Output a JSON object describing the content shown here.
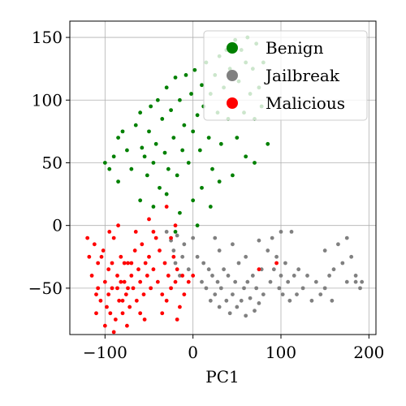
{
  "chart_data": {
    "type": "scatter",
    "xlabel": "PC1",
    "ylabel": "",
    "xlim": [
      -140,
      208
    ],
    "ylim": [
      -87,
      163
    ],
    "xticks": [
      -100,
      0,
      100,
      200
    ],
    "yticks": [
      -50,
      0,
      50,
      100,
      150
    ],
    "xtick_labels": [
      "−100",
      "0",
      "100",
      "200"
    ],
    "ytick_labels": [
      "−50",
      "0",
      "50",
      "100",
      "150"
    ],
    "grid": true,
    "legend_position": "top-right",
    "series": [
      {
        "name": "Benign",
        "color": "#008000",
        "points": [
          [
            -85,
            70
          ],
          [
            -80,
            75
          ],
          [
            -75,
            60
          ],
          [
            -70,
            45
          ],
          [
            -65,
            80
          ],
          [
            -60,
            90
          ],
          [
            -58,
            62
          ],
          [
            -55,
            55
          ],
          [
            -52,
            40
          ],
          [
            -50,
            75
          ],
          [
            -48,
            95
          ],
          [
            -45,
            50
          ],
          [
            -42,
            65
          ],
          [
            -40,
            100
          ],
          [
            -38,
            30
          ],
          [
            -35,
            85
          ],
          [
            -32,
            58
          ],
          [
            -30,
            110
          ],
          [
            -28,
            45
          ],
          [
            -25,
            92
          ],
          [
            -22,
            70
          ],
          [
            -20,
            118
          ],
          [
            -18,
            40
          ],
          [
            -15,
            100
          ],
          [
            -12,
            60
          ],
          [
            -10,
            80
          ],
          [
            -8,
            120
          ],
          [
            -5,
            50
          ],
          [
            -2,
            105
          ],
          [
            0,
            75
          ],
          [
            2,
            124
          ],
          [
            5,
            88
          ],
          [
            8,
            60
          ],
          [
            10,
            112
          ],
          [
            12,
            95
          ],
          [
            15,
            130
          ],
          [
            18,
            70
          ],
          [
            20,
            105
          ],
          [
            22,
            45
          ],
          [
            25,
            120
          ],
          [
            28,
            90
          ],
          [
            30,
            135
          ],
          [
            32,
            65
          ],
          [
            35,
            110
          ],
          [
            38,
            140
          ],
          [
            40,
            85
          ],
          [
            42,
            125
          ],
          [
            45,
            100
          ],
          [
            48,
            148
          ],
          [
            50,
            70
          ],
          [
            52,
            115
          ],
          [
            55,
            140
          ],
          [
            58,
            90
          ],
          [
            60,
            130
          ],
          [
            62,
            150
          ],
          [
            65,
            105
          ],
          [
            68,
            125
          ],
          [
            70,
            85
          ],
          [
            72,
            145
          ],
          [
            75,
            110
          ],
          [
            78,
            95
          ],
          [
            80,
            130
          ],
          [
            -90,
            55
          ],
          [
            -95,
            45
          ],
          [
            -100,
            50
          ],
          [
            -85,
            35
          ],
          [
            -60,
            20
          ],
          [
            -45,
            15
          ],
          [
            -30,
            25
          ],
          [
            -15,
            10
          ],
          [
            0,
            20
          ],
          [
            10,
            30
          ],
          [
            20,
            15
          ],
          [
            30,
            35
          ],
          [
            45,
            40
          ],
          [
            60,
            55
          ],
          [
            70,
            50
          ],
          [
            85,
            65
          ],
          [
            -20,
            -5
          ],
          [
            5,
            0
          ]
        ]
      },
      {
        "name": "Jailbreak",
        "color": "#808080",
        "points": [
          [
            -30,
            -5
          ],
          [
            -25,
            -12
          ],
          [
            -22,
            -20
          ],
          [
            -20,
            -30
          ],
          [
            -18,
            -8
          ],
          [
            -15,
            -40
          ],
          [
            -12,
            -25
          ],
          [
            -10,
            -15
          ],
          [
            -5,
            -35
          ],
          [
            0,
            -10
          ],
          [
            5,
            -25
          ],
          [
            10,
            -45
          ],
          [
            12,
            -30
          ],
          [
            15,
            -50
          ],
          [
            18,
            -35
          ],
          [
            20,
            -60
          ],
          [
            22,
            -40
          ],
          [
            25,
            -55
          ],
          [
            28,
            -45
          ],
          [
            30,
            -65
          ],
          [
            32,
            -50
          ],
          [
            35,
            -35
          ],
          [
            38,
            -60
          ],
          [
            40,
            -40
          ],
          [
            42,
            -70
          ],
          [
            45,
            -55
          ],
          [
            48,
            -45
          ],
          [
            50,
            -65
          ],
          [
            52,
            -30
          ],
          [
            55,
            -60
          ],
          [
            58,
            -50
          ],
          [
            60,
            -72
          ],
          [
            62,
            -45
          ],
          [
            65,
            -58
          ],
          [
            68,
            -40
          ],
          [
            70,
            -68
          ],
          [
            72,
            -50
          ],
          [
            75,
            -62
          ],
          [
            78,
            -35
          ],
          [
            80,
            -55
          ],
          [
            85,
            -20
          ],
          [
            88,
            -45
          ],
          [
            90,
            -10
          ],
          [
            92,
            -35
          ],
          [
            95,
            -25
          ],
          [
            98,
            -50
          ],
          [
            100,
            -40
          ],
          [
            102,
            -55
          ],
          [
            105,
            -30
          ],
          [
            108,
            -45
          ],
          [
            110,
            -60
          ],
          [
            112,
            -5
          ],
          [
            115,
            -40
          ],
          [
            118,
            -55
          ],
          [
            120,
            -35
          ],
          [
            125,
            -50
          ],
          [
            130,
            -40
          ],
          [
            135,
            -60
          ],
          [
            140,
            -45
          ],
          [
            145,
            -55
          ],
          [
            150,
            -50
          ],
          [
            155,
            -40
          ],
          [
            158,
            -60
          ],
          [
            160,
            -35
          ],
          [
            165,
            -15
          ],
          [
            170,
            -30
          ],
          [
            175,
            -45
          ],
          [
            180,
            -25
          ],
          [
            185,
            -45
          ],
          [
            190,
            -50
          ],
          [
            25,
            -10
          ],
          [
            30,
            -20
          ],
          [
            45,
            -15
          ],
          [
            60,
            -25
          ],
          [
            75,
            -12
          ],
          [
            100,
            -5
          ],
          [
            150,
            -20
          ],
          [
            175,
            -10
          ],
          [
            185,
            -40
          ],
          [
            192,
            -45
          ]
        ]
      },
      {
        "name": "Malicious",
        "color": "#ff0000",
        "points": [
          [
            -120,
            -10
          ],
          [
            -118,
            -25
          ],
          [
            -115,
            -40
          ],
          [
            -112,
            -15
          ],
          [
            -110,
            -55
          ],
          [
            -108,
            -30
          ],
          [
            -105,
            -60
          ],
          [
            -102,
            -20
          ],
          [
            -100,
            -45
          ],
          [
            -98,
            -65
          ],
          [
            -96,
            -35
          ],
          [
            -94,
            -70
          ],
          [
            -92,
            -50
          ],
          [
            -90,
            -10
          ],
          [
            -88,
            -75
          ],
          [
            -86,
            -40
          ],
          [
            -84,
            -60
          ],
          [
            -82,
            -25
          ],
          [
            -80,
            -70
          ],
          [
            -78,
            -45
          ],
          [
            -76,
            -55
          ],
          [
            -74,
            -30
          ],
          [
            -72,
            -65
          ],
          [
            -70,
            -40
          ],
          [
            -68,
            -50
          ],
          [
            -66,
            -20
          ],
          [
            -64,
            -60
          ],
          [
            -62,
            -35
          ],
          [
            -60,
            -45
          ],
          [
            -58,
            -15
          ],
          [
            -56,
            -55
          ],
          [
            -54,
            -30
          ],
          [
            -52,
            -40
          ],
          [
            -50,
            -25
          ],
          [
            -48,
            -50
          ],
          [
            -45,
            -35
          ],
          [
            -42,
            -10
          ],
          [
            -40,
            -45
          ],
          [
            -38,
            -20
          ],
          [
            -35,
            -55
          ],
          [
            -32,
            -30
          ],
          [
            -30,
            -60
          ],
          [
            -28,
            -40
          ],
          [
            -25,
            -50
          ],
          [
            -22,
            -25
          ],
          [
            -20,
            -45
          ],
          [
            -18,
            -35
          ],
          [
            -15,
            -65
          ],
          [
            -12,
            -40
          ],
          [
            -10,
            -55
          ],
          [
            -5,
            -45
          ],
          [
            0,
            -40
          ],
          [
            -95,
            -5
          ],
          [
            -85,
            0
          ],
          [
            -75,
            -80
          ],
          [
            -65,
            -5
          ],
          [
            -55,
            -75
          ],
          [
            -45,
            -5
          ],
          [
            -35,
            -70
          ],
          [
            -25,
            -10
          ],
          [
            -30,
            15
          ],
          [
            -50,
            5
          ],
          [
            -20,
            0
          ],
          [
            -18,
            -75
          ],
          [
            -100,
            -80
          ],
          [
            -90,
            -85
          ],
          [
            -110,
            -70
          ],
          [
            -80,
            -60
          ],
          [
            -70,
            -30
          ],
          [
            -60,
            -70
          ],
          [
            95,
            -30
          ],
          [
            75,
            -35
          ],
          [
            -108,
            -50
          ],
          [
            -104,
            -25
          ],
          [
            -96,
            -55
          ],
          [
            -92,
            -30
          ],
          [
            -86,
            -50
          ],
          [
            -82,
            -45
          ],
          [
            -78,
            -30
          ],
          [
            -74,
            -50
          ]
        ]
      }
    ]
  }
}
